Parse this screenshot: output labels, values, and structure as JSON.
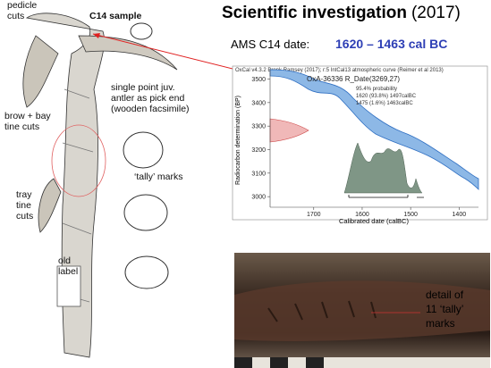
{
  "title": "Scientific investigation",
  "title_year": "(2017)",
  "date_line": {
    "label": "AMS C14 date:",
    "value": "1620 – 1463 cal BC"
  },
  "drawing_labels": [
    {
      "lines": [
        "pedicle",
        "cuts"
      ]
    },
    {
      "lines": [
        "C14 sample"
      ]
    },
    {
      "lines": [
        "single point juv.",
        "antler as pick end",
        "(wooden facsimile)"
      ]
    },
    {
      "lines": [
        "brow + bay",
        "tine cuts"
      ]
    },
    {
      "lines": [
        "‘tally’ marks"
      ]
    },
    {
      "lines": [
        "tray",
        "tine",
        "cuts"
      ]
    },
    {
      "lines": [
        "old",
        "label"
      ]
    }
  ],
  "calibration_plot": {
    "header": "OxCal v4.3.2 Bronk Ramsey (2017); r:5 IntCal13 atmospheric curve (Reimer et al 2013)",
    "sample": "OxA-36336 R_Date(3269,27)",
    "probability": "95.4% probability",
    "ranges": [
      "1620 (93.8%) 1497calBC",
      "1475 (1.6%) 1463calBC"
    ],
    "y_label": "Radiocarbon determination (BP)",
    "x_label": "Calibrated date (calBC)",
    "xlim": [
      1790,
      1360
    ],
    "ylim": [
      2955,
      3540
    ],
    "xticks": [
      1700,
      1600,
      1500,
      1400
    ],
    "yticks": [
      3000,
      3100,
      3200,
      3300,
      3400,
      3500
    ]
  },
  "photo_caption": {
    "lines": [
      "detail of",
      "11 ‘tally’",
      "marks"
    ]
  }
}
